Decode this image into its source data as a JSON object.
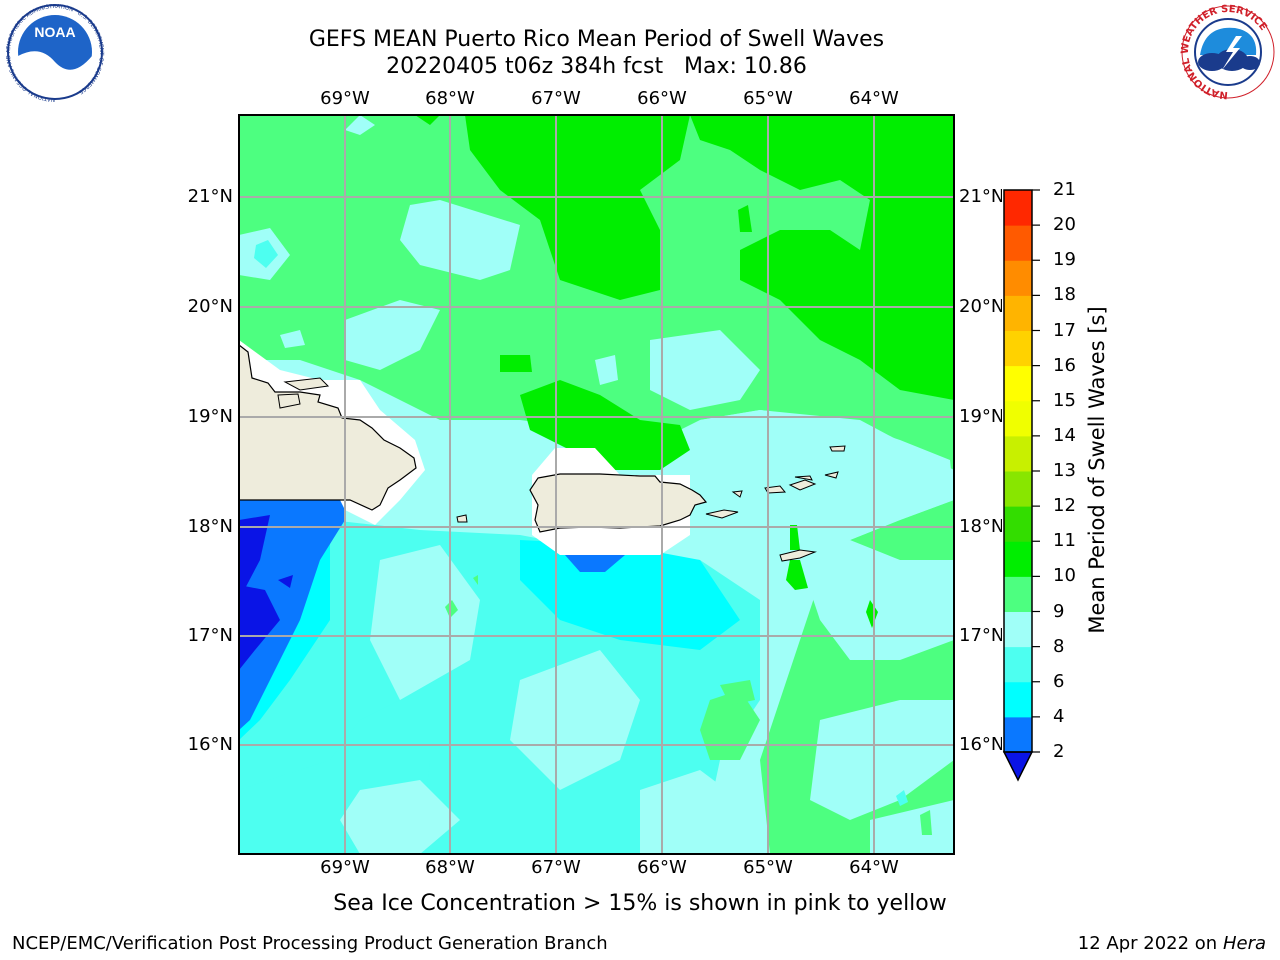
{
  "header": {
    "title_line1": "GEFS MEAN Puerto Rico Mean Period of Swell Waves",
    "title_line2": "20220405 t06z 384h fcst   Max: 10.86"
  },
  "logos": {
    "noara_text": "NOAA",
    "noaa_ring_text": "NATIONAL OCEANIC AND ATMOSPHERIC ADMINISTRATION · U.S. DEPARTMENT OF COMMERCE",
    "nws_ring_text": "NATIONAL WEATHER SERVICE"
  },
  "map": {
    "lon_ticks": [
      "69°W",
      "68°W",
      "67°W",
      "66°W",
      "65°W",
      "64°W"
    ],
    "lat_ticks": [
      "21°N",
      "20°N",
      "19°N",
      "18°N",
      "17°N",
      "16°N"
    ]
  },
  "colorbar": {
    "label": "Mean Period of Swell Waves [s]",
    "ticks": [
      "2",
      "4",
      "6",
      "8",
      "9",
      "10",
      "11",
      "12",
      "13",
      "14",
      "15",
      "16",
      "17",
      "18",
      "19",
      "20",
      "21"
    ],
    "colors": [
      "#0a14e6",
      "#0a78ff",
      "#00ffff",
      "#4dfff0",
      "#a0fff8",
      "#4dff80",
      "#00ee00",
      "#33dd00",
      "#88e600",
      "#c8f000",
      "#f0ff00",
      "#ffff00",
      "#ffd200",
      "#ffb400",
      "#ff8c00",
      "#ff5a00",
      "#ff2800",
      "#ff0000"
    ]
  },
  "footer": {
    "caption": "Sea Ice Concentration > 15% is shown in pink to yellow",
    "left": "NCEP/EMC/Verification Post Processing Product Generation Branch",
    "right_date": "12 Apr 2022 on",
    "right_host": "Hera"
  }
}
